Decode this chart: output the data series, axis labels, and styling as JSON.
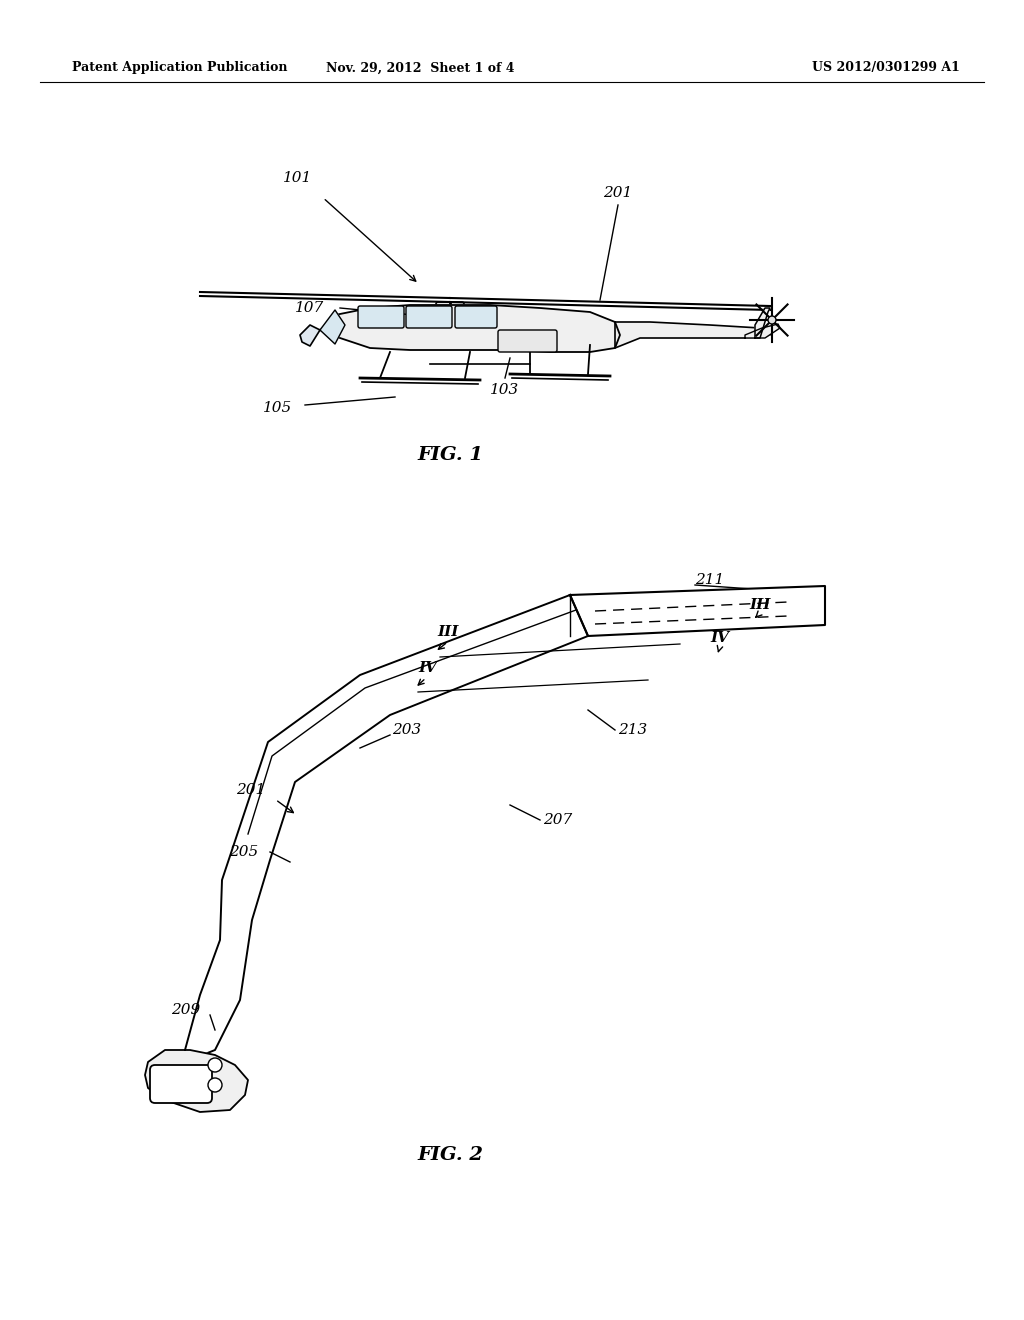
{
  "bg_color": "#ffffff",
  "line_color": "#000000",
  "fig_width": 10.24,
  "fig_height": 13.2,
  "header_left": "Patent Application Publication",
  "header_center": "Nov. 29, 2012  Sheet 1 of 4",
  "header_right": "US 2012/0301299 A1",
  "fig1_label": "FIG. 1",
  "fig2_label": "FIG. 2"
}
